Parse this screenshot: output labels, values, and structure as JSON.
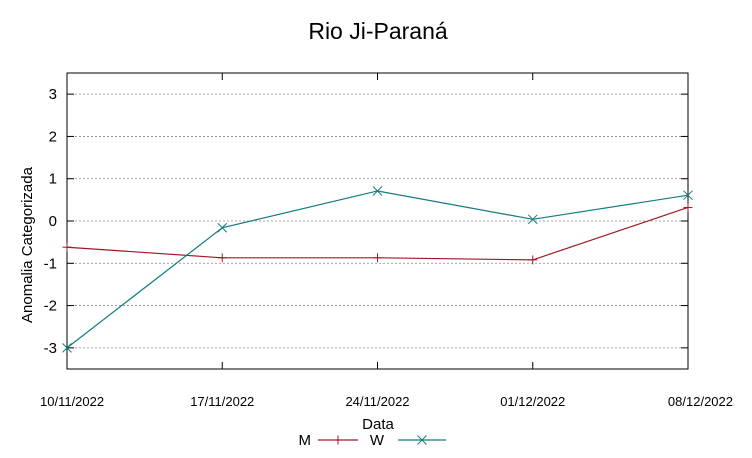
{
  "chart_data": {
    "type": "line",
    "title": "Rio Ji-Paraná",
    "xlabel": "Data",
    "ylabel": "Anomalia Categorizada",
    "categories": [
      "10/11/2022",
      "17/11/2022",
      "24/11/2022",
      "01/12/2022",
      "08/12/2022"
    ],
    "y_ticks": [
      "3",
      "2",
      "1",
      "0",
      "-1",
      "-2",
      "-3"
    ],
    "ylim": [
      -3.5,
      3.5
    ],
    "grid": true,
    "legend_position": "bottom",
    "series": [
      {
        "name": "M",
        "color": "#a0182a",
        "marker": "plus",
        "values": [
          -0.62,
          -0.87,
          -0.87,
          -0.92,
          0.32
        ]
      },
      {
        "name": "W",
        "color": "#137a80",
        "marker": "cross",
        "values": [
          -3.0,
          -0.16,
          0.71,
          0.04,
          0.61
        ]
      }
    ]
  }
}
